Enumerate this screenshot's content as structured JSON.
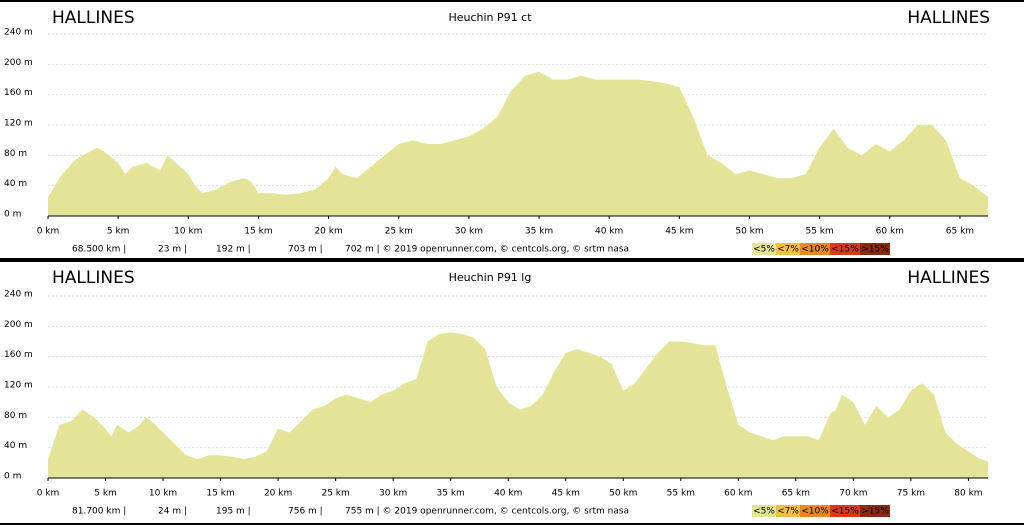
{
  "chart_data": [
    {
      "type": "area",
      "title": "Heuchin P91 ct",
      "start_label": "HALLINES",
      "end_label": "HALLINES",
      "x": [
        0,
        1,
        2,
        3,
        3.5,
        4,
        5,
        5.5,
        6,
        7,
        8,
        8.5,
        9,
        10,
        10.5,
        11,
        12,
        13,
        14,
        14.5,
        15,
        16,
        17,
        18,
        19,
        20,
        20.5,
        21,
        22,
        23,
        24,
        25,
        26,
        27,
        28,
        29,
        30,
        31,
        32,
        33,
        34,
        35,
        36,
        37,
        38,
        39,
        40,
        41,
        42,
        43,
        44,
        45,
        46,
        47,
        48,
        49,
        50,
        51,
        52,
        53,
        54,
        55,
        56,
        57,
        58,
        59,
        60,
        61,
        62,
        63,
        63.5,
        64,
        65,
        66,
        67
      ],
      "values": [
        25,
        55,
        75,
        85,
        90,
        85,
        70,
        55,
        65,
        70,
        60,
        80,
        72,
        55,
        40,
        30,
        35,
        45,
        50,
        45,
        30,
        30,
        28,
        30,
        35,
        50,
        65,
        55,
        50,
        65,
        80,
        95,
        100,
        95,
        95,
        100,
        105,
        115,
        130,
        165,
        185,
        190,
        180,
        180,
        185,
        180,
        180,
        180,
        180,
        178,
        175,
        170,
        130,
        80,
        70,
        55,
        60,
        55,
        50,
        50,
        55,
        90,
        115,
        90,
        80,
        95,
        85,
        100,
        120,
        120,
        110,
        100,
        50,
        40,
        25
      ],
      "color": "#e4e498",
      "xlim": [
        0,
        67
      ],
      "xticks": [
        {
          "value": 0,
          "label": "0 km"
        },
        {
          "value": 5,
          "label": "5 km"
        },
        {
          "value": 10,
          "label": "10 km"
        },
        {
          "value": 15,
          "label": "15 km"
        },
        {
          "value": 20,
          "label": "20 km"
        },
        {
          "value": 25,
          "label": "25 km"
        },
        {
          "value": 30,
          "label": "30 km"
        },
        {
          "value": 35,
          "label": "35 km"
        },
        {
          "value": 40,
          "label": "40 km"
        },
        {
          "value": 45,
          "label": "45 km"
        },
        {
          "value": 50,
          "label": "50 km"
        },
        {
          "value": 55,
          "label": "55 km"
        },
        {
          "value": 60,
          "label": "60 km"
        },
        {
          "value": 65,
          "label": "65 km"
        }
      ],
      "ylim": [
        0,
        240
      ],
      "yticks": [
        {
          "value": 0,
          "label": "0 m"
        },
        {
          "value": 40,
          "label": "40 m"
        },
        {
          "value": 80,
          "label": "80 m"
        },
        {
          "value": 120,
          "label": "120 m"
        },
        {
          "value": 160,
          "label": "160 m"
        },
        {
          "value": 200,
          "label": "200 m"
        },
        {
          "value": 240,
          "label": "240 m"
        }
      ],
      "grid": true,
      "stats": [
        "68.500 km |",
        "23 m |",
        "192 m |",
        "703 m |",
        "702 m | © 2019 openrunner.com, © centcols.org, © srtm nasa"
      ],
      "legend": [
        {
          "label": "<5%",
          "color": "#e4e498"
        },
        {
          "label": "<7%",
          "color": "#f0c040"
        },
        {
          "label": "<10%",
          "color": "#e88a20"
        },
        {
          "label": "<15%",
          "color": "#d83a1c"
        },
        {
          "label": ">15%",
          "color": "#8a2a10"
        }
      ]
    },
    {
      "type": "area",
      "title": "Heuchin P91 lg",
      "start_label": "HALLINES",
      "end_label": "HALLINES",
      "x": [
        0,
        1,
        2,
        3,
        4,
        5,
        5.5,
        6,
        7,
        8,
        8.5,
        9,
        10,
        11,
        12,
        13,
        14,
        15,
        16,
        17,
        18,
        19,
        20,
        21,
        22,
        23,
        24,
        25,
        26,
        27,
        28,
        29,
        30,
        31,
        32,
        33,
        34,
        35,
        36,
        37,
        38,
        39,
        40,
        41,
        42,
        43,
        44,
        45,
        46,
        47,
        48,
        49,
        50,
        51,
        52,
        53,
        54,
        55,
        56,
        57,
        58,
        59,
        60,
        61,
        62,
        63,
        64,
        65,
        66,
        67,
        68,
        68.5,
        69,
        70,
        71,
        72,
        73,
        74,
        75,
        76,
        77,
        78,
        79,
        80,
        81,
        81.7
      ],
      "values": [
        25,
        70,
        75,
        90,
        80,
        65,
        55,
        70,
        60,
        70,
        80,
        75,
        60,
        45,
        30,
        25,
        30,
        30,
        28,
        25,
        28,
        35,
        65,
        60,
        75,
        90,
        95,
        105,
        110,
        105,
        100,
        110,
        115,
        125,
        130,
        180,
        190,
        192,
        190,
        185,
        170,
        120,
        100,
        90,
        95,
        110,
        140,
        165,
        170,
        165,
        160,
        150,
        115,
        125,
        145,
        165,
        180,
        180,
        178,
        175,
        175,
        120,
        70,
        60,
        55,
        50,
        55,
        55,
        55,
        50,
        85,
        90,
        110,
        100,
        70,
        95,
        80,
        90,
        115,
        125,
        110,
        60,
        45,
        35,
        25,
        22
      ],
      "color": "#e4e498",
      "xlim": [
        0,
        81.7
      ],
      "xticks": [
        {
          "value": 0,
          "label": "0 km"
        },
        {
          "value": 5,
          "label": "5 km"
        },
        {
          "value": 10,
          "label": "10 km"
        },
        {
          "value": 15,
          "label": "15 km"
        },
        {
          "value": 20,
          "label": "20 km"
        },
        {
          "value": 25,
          "label": "25 km"
        },
        {
          "value": 30,
          "label": "30 km"
        },
        {
          "value": 35,
          "label": "35 km"
        },
        {
          "value": 40,
          "label": "40 km"
        },
        {
          "value": 45,
          "label": "45 km"
        },
        {
          "value": 50,
          "label": "50 km"
        },
        {
          "value": 55,
          "label": "55 km"
        },
        {
          "value": 60,
          "label": "60 km"
        },
        {
          "value": 65,
          "label": "65 km"
        },
        {
          "value": 70,
          "label": "70 km"
        },
        {
          "value": 75,
          "label": "75 km"
        },
        {
          "value": 80,
          "label": "80 km"
        }
      ],
      "ylim": [
        0,
        240
      ],
      "yticks": [
        {
          "value": 0,
          "label": "0 m"
        },
        {
          "value": 40,
          "label": "40 m"
        },
        {
          "value": 80,
          "label": "80 m"
        },
        {
          "value": 120,
          "label": "120 m"
        },
        {
          "value": 160,
          "label": "160 m"
        },
        {
          "value": 200,
          "label": "200 m"
        },
        {
          "value": 240,
          "label": "240 m"
        }
      ],
      "grid": true,
      "stats": [
        "81.700 km |",
        "24 m |",
        "195 m |",
        "756 m |",
        "755 m | © 2019 openrunner.com, © centcols.org, © srtm nasa"
      ],
      "legend": [
        {
          "label": "<5%",
          "color": "#e4e498"
        },
        {
          "label": "<7%",
          "color": "#f0c040"
        },
        {
          "label": "<10%",
          "color": "#e88a20"
        },
        {
          "label": "<15%",
          "color": "#d83a1c"
        },
        {
          "label": ">15%",
          "color": "#8a2a10"
        }
      ]
    }
  ]
}
